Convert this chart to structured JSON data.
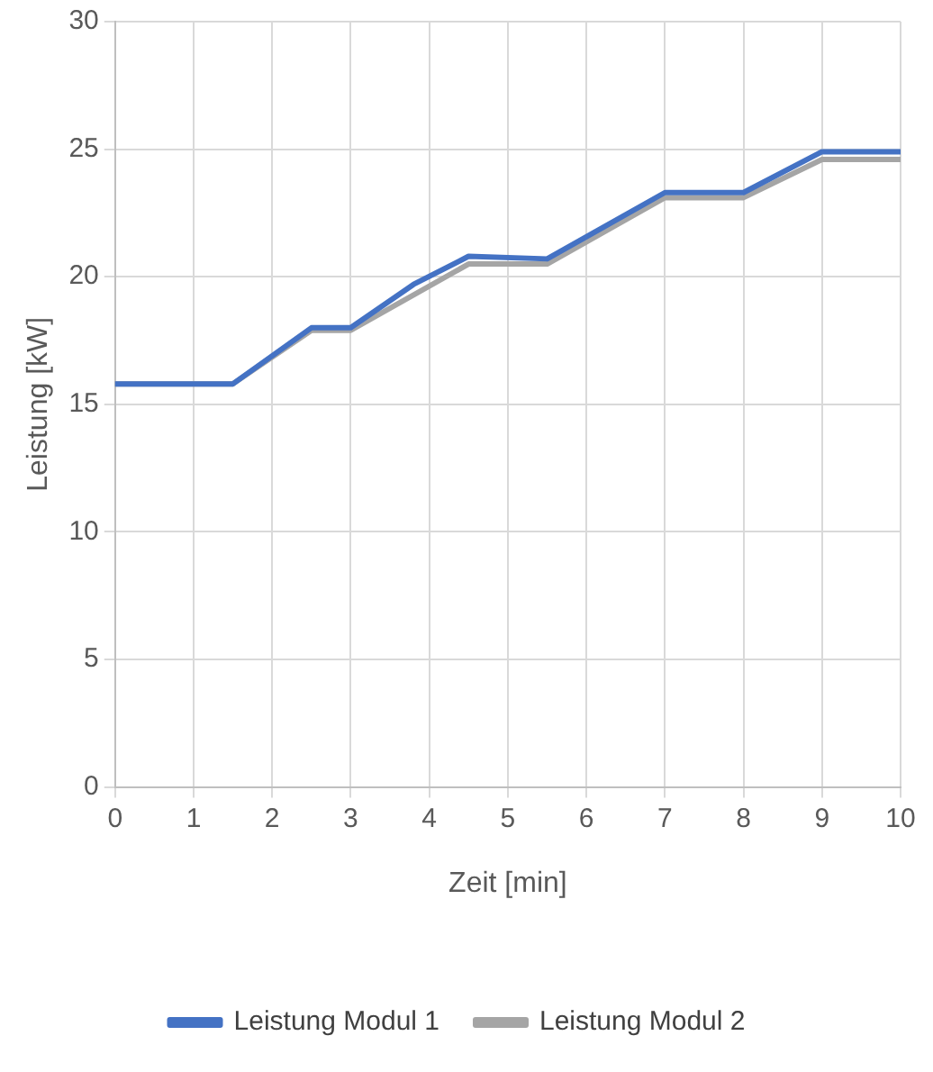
{
  "chart_data": {
    "type": "line",
    "xlabel": "Zeit [min]",
    "ylabel": "Leistung [kW]",
    "xlim": [
      0,
      10
    ],
    "xticks": [
      0,
      1,
      2,
      3,
      4,
      5,
      6,
      7,
      8,
      9,
      10
    ],
    "ylim": [
      0,
      30
    ],
    "yticks": [
      0,
      5,
      10,
      15,
      20,
      25,
      30
    ],
    "grid": true,
    "legend": "bottom",
    "marker": "none",
    "line_style": "solid",
    "series": [
      {
        "name": "Leistung Modul 1",
        "color": "#4472c4",
        "x": [
          0,
          1.5,
          2.5,
          3,
          3.8,
          4.5,
          5.5,
          7,
          8,
          9,
          10
        ],
        "values": [
          15.8,
          15.8,
          18,
          18,
          19.7,
          20.8,
          20.7,
          23.3,
          23.3,
          24.9,
          24.9
        ]
      },
      {
        "name": "Leistung Modul 2",
        "color": "#a5a5a5",
        "x": [
          0,
          1.5,
          2.5,
          3,
          4.5,
          5.5,
          7,
          8,
          9,
          10
        ],
        "values": [
          15.8,
          15.8,
          17.9,
          17.9,
          20.5,
          20.5,
          23.1,
          23.1,
          24.6,
          24.6
        ]
      }
    ]
  }
}
